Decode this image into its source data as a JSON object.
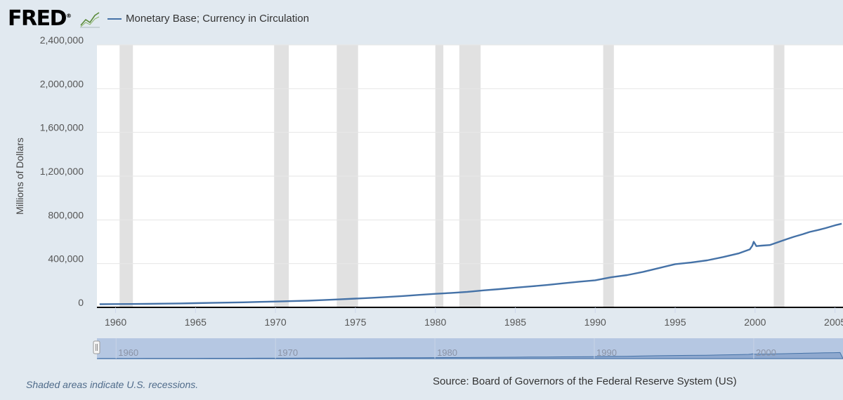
{
  "header": {
    "logo_text": "FRED",
    "logo_mark": "®",
    "logo_icon": "line-graph-icon"
  },
  "chart_data": {
    "type": "line",
    "title": "",
    "series": [
      {
        "name": "Monetary Base; Currency in Circulation",
        "color": "#4572a7",
        "points": [
          [
            "1959-01",
            29000
          ],
          [
            "1960-01",
            30000
          ],
          [
            "1961-01",
            30500
          ],
          [
            "1962-01",
            32000
          ],
          [
            "1963-01",
            34000
          ],
          [
            "1964-01",
            36000
          ],
          [
            "1965-01",
            38500
          ],
          [
            "1966-01",
            41000
          ],
          [
            "1967-01",
            43500
          ],
          [
            "1968-01",
            46500
          ],
          [
            "1969-01",
            50000
          ],
          [
            "1970-01",
            53000
          ],
          [
            "1971-01",
            57000
          ],
          [
            "1972-01",
            61000
          ],
          [
            "1973-01",
            67000
          ],
          [
            "1974-01",
            73000
          ],
          [
            "1975-01",
            80000
          ],
          [
            "1976-01",
            87000
          ],
          [
            "1977-01",
            95000
          ],
          [
            "1978-01",
            104000
          ],
          [
            "1979-01",
            114000
          ],
          [
            "1980-01",
            124000
          ],
          [
            "1981-01",
            132000
          ],
          [
            "1982-01",
            142000
          ],
          [
            "1983-01",
            155000
          ],
          [
            "1984-01",
            167000
          ],
          [
            "1985-01",
            180000
          ],
          [
            "1986-01",
            192000
          ],
          [
            "1987-01",
            205000
          ],
          [
            "1988-01",
            220000
          ],
          [
            "1989-01",
            235000
          ],
          [
            "1990-01",
            248000
          ],
          [
            "1991-01",
            275000
          ],
          [
            "1992-01",
            295000
          ],
          [
            "1993-01",
            325000
          ],
          [
            "1994-01",
            360000
          ],
          [
            "1995-01",
            395000
          ],
          [
            "1996-01",
            410000
          ],
          [
            "1997-01",
            430000
          ],
          [
            "1998-01",
            460000
          ],
          [
            "1999-01",
            495000
          ],
          [
            "1999-09",
            530000
          ],
          [
            "1999-11",
            565000
          ],
          [
            "1999-12",
            600000
          ],
          [
            "2000-02",
            560000
          ],
          [
            "2000-06",
            565000
          ],
          [
            "2000-12",
            570000
          ],
          [
            "2001-06",
            595000
          ],
          [
            "2002-01",
            625000
          ],
          [
            "2002-06",
            645000
          ],
          [
            "2003-01",
            670000
          ],
          [
            "2003-06",
            690000
          ],
          [
            "2004-01",
            710000
          ],
          [
            "2004-06",
            725000
          ],
          [
            "2005-01",
            750000
          ],
          [
            "2005-06",
            765000
          ]
        ]
      }
    ],
    "recessions": [
      [
        "1960-04",
        "1961-02"
      ],
      [
        "1969-12",
        "1970-11"
      ],
      [
        "1973-11",
        "1975-03"
      ],
      [
        "1980-01",
        "1980-07"
      ],
      [
        "1981-07",
        "1982-11"
      ],
      [
        "1990-07",
        "1991-03"
      ],
      [
        "2001-03",
        "2001-11"
      ]
    ],
    "xlim": [
      "1958-11",
      "2005-07"
    ],
    "ylim": [
      0,
      2400000
    ],
    "y_ticks": [
      "0",
      "400,000",
      "800,000",
      "1,200,000",
      "1,600,000",
      "2,000,000",
      "2,400,000"
    ],
    "x_ticks": [
      "1960",
      "1965",
      "1970",
      "1975",
      "1980",
      "1985",
      "1990",
      "1995",
      "2000",
      "2005"
    ],
    "ylabel": "Millions of Dollars",
    "xlabel": "",
    "grid": true,
    "navigator_labels": [
      "1960",
      "1970",
      "1980",
      "1990",
      "2000"
    ]
  },
  "footer": {
    "recession_note": "Shaded areas indicate U.S. recessions.",
    "source": "Source: Board of Governors of the Federal Reserve System (US)"
  },
  "colors": {
    "background": "#e1e9f0",
    "plot_background": "#ffffff",
    "recession_shade": "#e1e1e1",
    "series_line": "#4572a7",
    "navigator_fill": "#b5c7e2"
  }
}
